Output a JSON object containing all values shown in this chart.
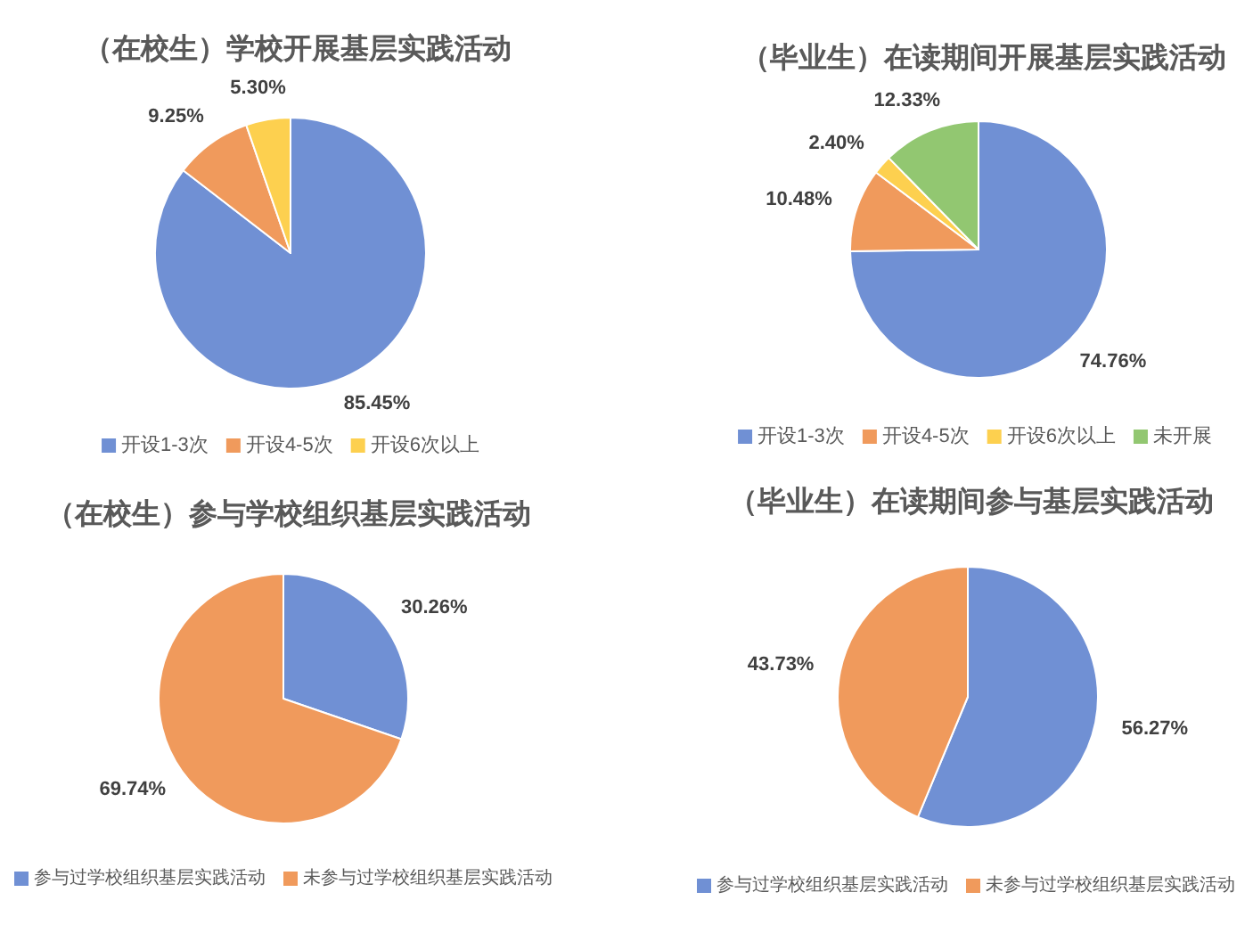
{
  "chart_data": [
    {
      "type": "pie",
      "title": "（在校生）学校开展基层实践活动",
      "categories": [
        "开设1-3次",
        "开设4-5次",
        "开设6次以上"
      ],
      "values": [
        85.45,
        9.25,
        5.3
      ],
      "value_labels": [
        "85.45%",
        "9.25%",
        "5.30%"
      ],
      "colors": [
        "#7090d4",
        "#f09a5c",
        "#fdd04f"
      ],
      "legend": "bottom"
    },
    {
      "type": "pie",
      "title": "（毕业生）在读期间开展基层实践活动",
      "categories": [
        "开设1-3次",
        "开设4-5次",
        "开设6次以上",
        "未开展"
      ],
      "values": [
        74.76,
        10.48,
        2.4,
        12.33
      ],
      "value_labels": [
        "74.76%",
        "10.48%",
        "2.40%",
        "12.33%"
      ],
      "colors": [
        "#7090d4",
        "#f09a5c",
        "#fdd04f",
        "#92c771"
      ],
      "legend": "bottom"
    },
    {
      "type": "pie",
      "title": "（在校生）参与学校组织基层实践活动",
      "categories": [
        "参与过学校组织基层实践活动",
        "未参与过学校组织基层实践活动"
      ],
      "values": [
        30.26,
        69.74
      ],
      "value_labels": [
        "30.26%",
        "69.74%"
      ],
      "colors": [
        "#7090d4",
        "#f09a5c"
      ],
      "legend": "bottom"
    },
    {
      "type": "pie",
      "title": "（毕业生）在读期间参与基层实践活动",
      "categories": [
        "参与过学校组织基层实践活动",
        "未参与过学校组织基层实践活动"
      ],
      "values": [
        56.27,
        43.73
      ],
      "value_labels": [
        "56.27%",
        "43.73%"
      ],
      "colors": [
        "#7090d4",
        "#f09a5c"
      ],
      "legend": "bottom"
    }
  ]
}
